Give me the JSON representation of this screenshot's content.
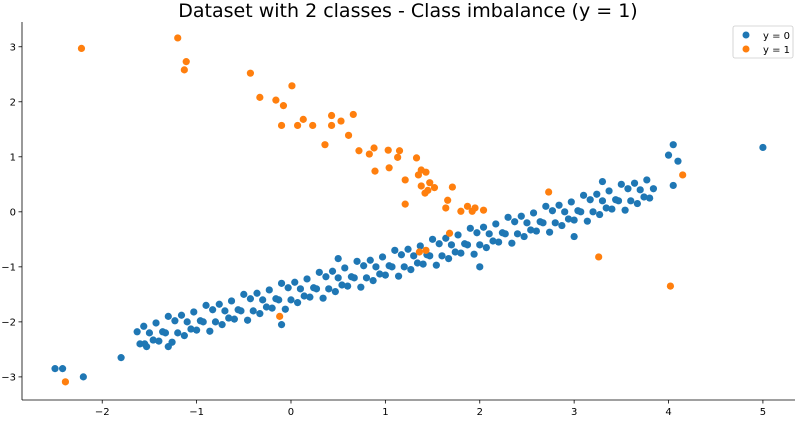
{
  "chart_data": {
    "type": "scatter",
    "title": "Dataset with 2 classes - Class imbalance (y = 1)",
    "xlabel": "",
    "ylabel": "",
    "xlim": [
      -2.85,
      5.34
    ],
    "ylim": [
      -3.42,
      3.45
    ],
    "xticks": [
      -2,
      -1,
      0,
      1,
      2,
      3,
      4,
      5
    ],
    "xtick_labels": [
      "−2",
      "−1",
      "0",
      "1",
      "2",
      "3",
      "4",
      "5"
    ],
    "yticks": [
      -3,
      -2,
      -1,
      0,
      1,
      2,
      3
    ],
    "ytick_labels": [
      "−3",
      "−2",
      "−1",
      "0",
      "1",
      "2",
      "3"
    ],
    "grid": false,
    "legend_position": "top-right",
    "series": [
      {
        "name": "y = 0",
        "color": "#1f77b4",
        "points": [
          [
            -1.63,
            -2.18
          ],
          [
            -1.6,
            -2.4
          ],
          [
            -1.56,
            -2.08
          ],
          [
            -1.53,
            -2.45
          ],
          [
            -1.5,
            -2.2
          ],
          [
            -1.46,
            -2.33
          ],
          [
            -1.43,
            -2.02
          ],
          [
            -1.4,
            -2.35
          ],
          [
            -1.36,
            -2.18
          ],
          [
            -1.33,
            -2.2
          ],
          [
            -1.3,
            -1.9
          ],
          [
            -1.26,
            -2.37
          ],
          [
            -1.23,
            -1.98
          ],
          [
            -1.2,
            -2.2
          ],
          [
            -1.16,
            -1.88
          ],
          [
            -1.13,
            -2.25
          ],
          [
            -1.1,
            -2.0
          ],
          [
            -1.06,
            -2.13
          ],
          [
            -1.03,
            -1.82
          ],
          [
            -1.0,
            -2.15
          ],
          [
            -0.96,
            -1.98
          ],
          [
            -0.93,
            -2.0
          ],
          [
            -0.9,
            -1.7
          ],
          [
            -0.86,
            -2.17
          ],
          [
            -0.83,
            -1.78
          ],
          [
            -0.8,
            -2.0
          ],
          [
            -0.76,
            -1.68
          ],
          [
            -0.73,
            -2.05
          ],
          [
            -0.7,
            -1.8
          ],
          [
            -0.66,
            -1.93
          ],
          [
            -0.63,
            -1.62
          ],
          [
            -0.6,
            -1.95
          ],
          [
            -0.56,
            -1.78
          ],
          [
            -0.53,
            -1.8
          ],
          [
            -0.5,
            -1.5
          ],
          [
            -0.46,
            -1.97
          ],
          [
            -0.43,
            -1.58
          ],
          [
            -0.4,
            -1.8
          ],
          [
            -0.36,
            -1.48
          ],
          [
            -0.33,
            -1.85
          ],
          [
            -0.3,
            -1.6
          ],
          [
            -0.26,
            -1.73
          ],
          [
            -0.23,
            -1.42
          ],
          [
            -0.2,
            -1.75
          ],
          [
            -0.16,
            -1.58
          ],
          [
            -0.13,
            -1.6
          ],
          [
            -0.1,
            -1.3
          ],
          [
            -0.06,
            -1.77
          ],
          [
            -0.03,
            -1.38
          ],
          [
            0,
            -1.6
          ],
          [
            0.04,
            -1.28
          ],
          [
            0.07,
            -1.65
          ],
          [
            0.1,
            -1.4
          ],
          [
            0.14,
            -1.53
          ],
          [
            0.17,
            -1.22
          ],
          [
            0.2,
            -1.55
          ],
          [
            0.24,
            -1.38
          ],
          [
            0.27,
            -1.4
          ],
          [
            0.3,
            -1.1
          ],
          [
            0.34,
            -1.57
          ],
          [
            0.37,
            -1.18
          ],
          [
            0.4,
            -1.4
          ],
          [
            0.44,
            -1.08
          ],
          [
            0.47,
            -1.45
          ],
          [
            0.5,
            -1.2
          ],
          [
            0.54,
            -1.33
          ],
          [
            0.57,
            -1.02
          ],
          [
            0.6,
            -1.35
          ],
          [
            0.64,
            -1.18
          ],
          [
            0.67,
            -1.2
          ],
          [
            0.7,
            -0.9
          ],
          [
            0.74,
            -1.37
          ],
          [
            0.77,
            -0.98
          ],
          [
            0.8,
            -1.2
          ],
          [
            0.84,
            -0.88
          ],
          [
            0.87,
            -1.25
          ],
          [
            0.9,
            -1.0
          ],
          [
            0.94,
            -1.13
          ],
          [
            0.97,
            -0.82
          ],
          [
            1.0,
            -1.15
          ],
          [
            1.04,
            -0.98
          ],
          [
            1.07,
            -1.0
          ],
          [
            1.1,
            -0.7
          ],
          [
            1.14,
            -1.17
          ],
          [
            1.17,
            -0.78
          ],
          [
            1.2,
            -1.0
          ],
          [
            1.24,
            -0.68
          ],
          [
            1.27,
            -1.05
          ],
          [
            1.3,
            -0.8
          ],
          [
            1.34,
            -0.93
          ],
          [
            1.37,
            -0.62
          ],
          [
            1.4,
            -0.95
          ],
          [
            1.44,
            -0.78
          ],
          [
            1.47,
            -0.8
          ],
          [
            1.5,
            -0.5
          ],
          [
            1.54,
            -0.97
          ],
          [
            1.57,
            -0.58
          ],
          [
            1.6,
            -0.8
          ],
          [
            1.64,
            -0.48
          ],
          [
            1.67,
            -0.85
          ],
          [
            1.7,
            -0.6
          ],
          [
            1.74,
            -0.73
          ],
          [
            1.77,
            -0.42
          ],
          [
            1.8,
            -0.75
          ],
          [
            1.84,
            -0.58
          ],
          [
            1.87,
            -0.6
          ],
          [
            1.9,
            -0.3
          ],
          [
            1.94,
            -0.77
          ],
          [
            1.97,
            -0.38
          ],
          [
            2.0,
            -0.6
          ],
          [
            2.04,
            -0.28
          ],
          [
            2.07,
            -0.65
          ],
          [
            2.1,
            -0.4
          ],
          [
            2.14,
            -0.53
          ],
          [
            2.17,
            -0.22
          ],
          [
            2.2,
            -0.55
          ],
          [
            2.24,
            -0.38
          ],
          [
            2.27,
            -0.4
          ],
          [
            2.3,
            -0.1
          ],
          [
            2.34,
            -0.57
          ],
          [
            2.37,
            -0.18
          ],
          [
            2.4,
            -0.4
          ],
          [
            2.44,
            -0.08
          ],
          [
            2.47,
            -0.45
          ],
          [
            2.5,
            -0.2
          ],
          [
            2.54,
            -0.33
          ],
          [
            2.57,
            -0.02
          ],
          [
            2.6,
            -0.35
          ],
          [
            2.64,
            -0.18
          ],
          [
            2.67,
            -0.2
          ],
          [
            2.7,
            0.1
          ],
          [
            2.74,
            -0.37
          ],
          [
            2.77,
            0.02
          ],
          [
            2.8,
            -0.2
          ],
          [
            2.84,
            0.12
          ],
          [
            2.87,
            -0.25
          ],
          [
            2.9,
            0.0
          ],
          [
            2.94,
            -0.13
          ],
          [
            2.97,
            0.18
          ],
          [
            3.0,
            -0.15
          ],
          [
            3.04,
            0.02
          ],
          [
            3.07,
            0.0
          ],
          [
            3.1,
            0.3
          ],
          [
            3.14,
            -0.17
          ],
          [
            3.17,
            0.22
          ],
          [
            3.2,
            0.0
          ],
          [
            3.24,
            0.32
          ],
          [
            3.27,
            -0.05
          ],
          [
            3.3,
            0.2
          ],
          [
            3.34,
            0.07
          ],
          [
            3.37,
            0.38
          ],
          [
            3.4,
            0.05
          ],
          [
            3.44,
            0.22
          ],
          [
            3.47,
            0.2
          ],
          [
            3.5,
            0.5
          ],
          [
            3.54,
            0.03
          ],
          [
            3.57,
            0.42
          ],
          [
            3.6,
            0.2
          ],
          [
            3.64,
            0.52
          ],
          [
            3.67,
            0.15
          ],
          [
            3.7,
            0.4
          ],
          [
            3.74,
            0.27
          ],
          [
            3.77,
            0.58
          ],
          [
            3.8,
            0.25
          ],
          [
            3.84,
            0.42
          ],
          [
            -2.5,
            -2.85
          ],
          [
            -2.42,
            -2.85
          ],
          [
            -2.2,
            -3.0
          ],
          [
            -1.8,
            -2.65
          ],
          [
            -1.55,
            -2.4
          ],
          [
            4.05,
            1.22
          ],
          [
            4.0,
            1.03
          ],
          [
            4.1,
            0.92
          ],
          [
            4.05,
            0.48
          ],
          [
            5.0,
            1.17
          ],
          [
            3.0,
            -0.45
          ],
          [
            2.0,
            -1.0
          ],
          [
            0.5,
            -0.85
          ],
          [
            -0.1,
            -2.05
          ],
          [
            -1.3,
            -2.45
          ],
          [
            3.3,
            0.55
          ]
        ]
      },
      {
        "name": "y = 1",
        "color": "#ff7f0e",
        "points": [
          [
            -2.22,
            2.97
          ],
          [
            -1.2,
            3.16
          ],
          [
            -1.11,
            2.73
          ],
          [
            -1.13,
            2.58
          ],
          [
            -0.43,
            2.52
          ],
          [
            0.01,
            2.29
          ],
          [
            -0.33,
            2.08
          ],
          [
            -0.16,
            2.03
          ],
          [
            -0.08,
            1.93
          ],
          [
            -0.1,
            1.57
          ],
          [
            0.13,
            1.68
          ],
          [
            0.07,
            1.57
          ],
          [
            0.23,
            1.57
          ],
          [
            0.43,
            1.75
          ],
          [
            0.43,
            1.57
          ],
          [
            0.53,
            1.65
          ],
          [
            0.66,
            1.77
          ],
          [
            0.61,
            1.39
          ],
          [
            0.36,
            1.22
          ],
          [
            0.72,
            1.11
          ],
          [
            0.83,
            1.05
          ],
          [
            0.88,
            1.16
          ],
          [
            1.03,
            1.12
          ],
          [
            1.15,
            1.11
          ],
          [
            1.13,
            0.99
          ],
          [
            1.33,
            0.98
          ],
          [
            0.89,
            0.74
          ],
          [
            1.04,
            0.8
          ],
          [
            1.21,
            0.58
          ],
          [
            1.38,
            0.76
          ],
          [
            1.35,
            0.67
          ],
          [
            1.43,
            0.72
          ],
          [
            1.38,
            0.47
          ],
          [
            1.47,
            0.53
          ],
          [
            1.52,
            0.44
          ],
          [
            1.45,
            0.39
          ],
          [
            1.42,
            0.34
          ],
          [
            1.71,
            0.45
          ],
          [
            1.21,
            0.14
          ],
          [
            1.66,
            0.21
          ],
          [
            1.64,
            0.07
          ],
          [
            1.8,
            0.01
          ],
          [
            1.87,
            0.1
          ],
          [
            1.95,
            0.07
          ],
          [
            1.92,
            0.01
          ],
          [
            2.04,
            0.03
          ],
          [
            2.73,
            0.36
          ],
          [
            4.15,
            0.67
          ],
          [
            1.68,
            -0.39
          ],
          [
            1.36,
            -0.73
          ],
          [
            1.43,
            -0.7
          ],
          [
            3.26,
            -0.82
          ],
          [
            4.02,
            -1.35
          ],
          [
            -0.12,
            -1.9
          ],
          [
            -2.39,
            -3.09
          ]
        ]
      }
    ]
  }
}
